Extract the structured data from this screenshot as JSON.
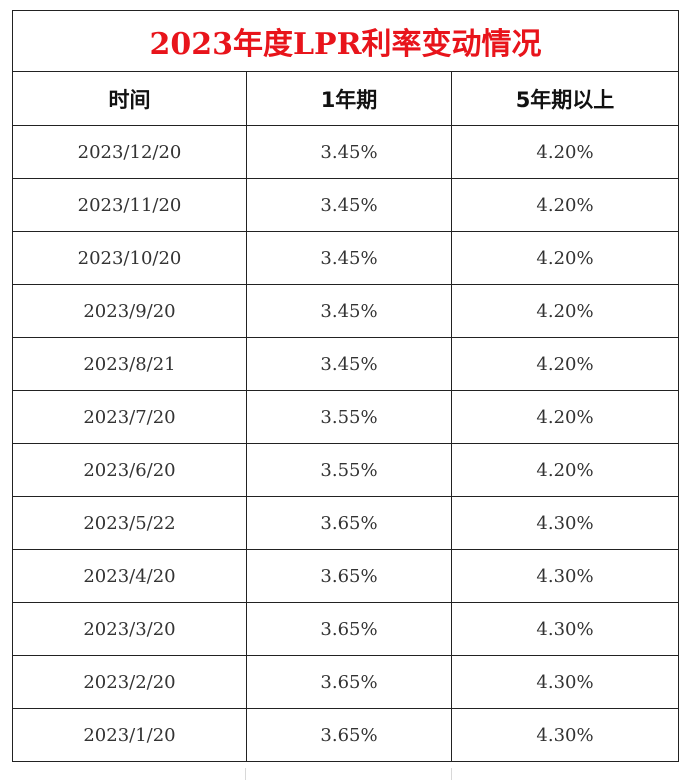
{
  "table": {
    "title": "2023年度LPR利率变动情况",
    "headers": [
      "时间",
      "1年期",
      "5年期以上"
    ],
    "rows": [
      {
        "date": "2023/12/20",
        "one_year": "3.45%",
        "five_year": "4.20%"
      },
      {
        "date": "2023/11/20",
        "one_year": "3.45%",
        "five_year": "4.20%"
      },
      {
        "date": "2023/10/20",
        "one_year": "3.45%",
        "five_year": "4.20%"
      },
      {
        "date": "2023/9/20",
        "one_year": "3.45%",
        "five_year": "4.20%"
      },
      {
        "date": "2023/8/21",
        "one_year": "3.45%",
        "five_year": "4.20%"
      },
      {
        "date": "2023/7/20",
        "one_year": "3.55%",
        "five_year": "4.20%"
      },
      {
        "date": "2023/6/20",
        "one_year": "3.55%",
        "five_year": "4.20%"
      },
      {
        "date": "2023/5/22",
        "one_year": "3.65%",
        "five_year": "4.30%"
      },
      {
        "date": "2023/4/20",
        "one_year": "3.65%",
        "five_year": "4.30%"
      },
      {
        "date": "2023/3/20",
        "one_year": "3.65%",
        "five_year": "4.30%"
      },
      {
        "date": "2023/2/20",
        "one_year": "3.65%",
        "five_year": "4.30%"
      },
      {
        "date": "2023/1/20",
        "one_year": "3.65%",
        "five_year": "4.30%"
      }
    ]
  },
  "colors": {
    "title": "#e8141b",
    "border": "#222222",
    "text": "#333333"
  }
}
